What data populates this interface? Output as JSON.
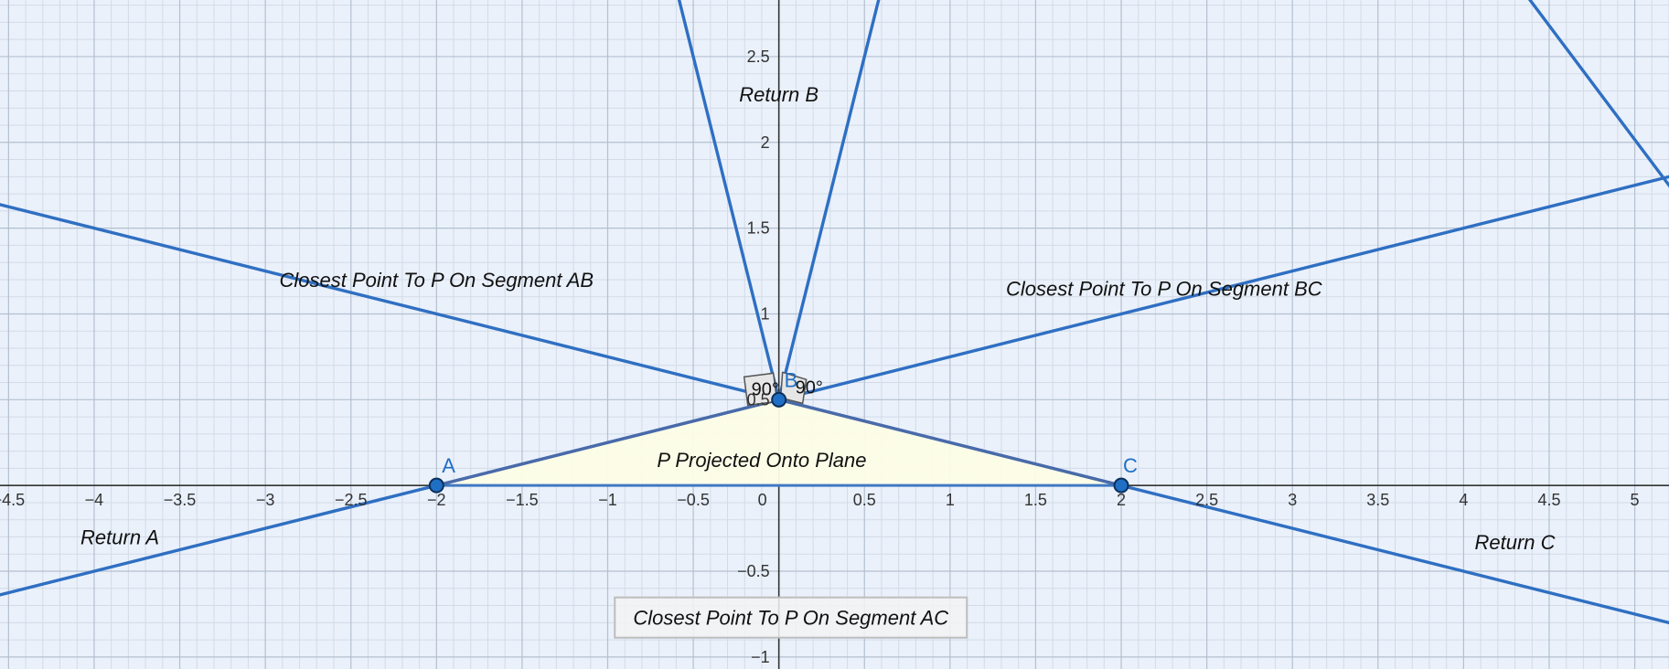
{
  "chart_data": {
    "type": "scatter",
    "title": "",
    "xlabel": "",
    "ylabel": "",
    "xlim": [
      -4.55,
      5.2
    ],
    "ylim": [
      -1.07,
      2.83
    ],
    "grid": true,
    "x_ticks": [
      "-4.5",
      "-4",
      "-3.5",
      "-3",
      "-2.5",
      "-2",
      "-1.5",
      "-1",
      "-0.5",
      "0",
      "0.5",
      "1",
      "1.5",
      "2",
      "2.5",
      "3",
      "3.5",
      "4",
      "4.5",
      "5"
    ],
    "y_ticks": [
      "-1",
      "-0.5",
      "0.5",
      "1",
      "1.5",
      "2",
      "2.5"
    ],
    "points": [
      {
        "label": "A",
        "x": -2,
        "y": 0
      },
      {
        "label": "B",
        "x": 0,
        "y": 0.5
      },
      {
        "label": "C",
        "x": 2,
        "y": 0
      }
    ],
    "triangle": [
      "A",
      "B",
      "C"
    ],
    "lines": [
      {
        "through": [
          -2,
          0
        ],
        "slope": 0.25
      },
      {
        "through": [
          2,
          0
        ],
        "slope": -0.25
      },
      {
        "through": [
          0,
          0.5
        ],
        "slope": 4
      },
      {
        "through": [
          0,
          0.5
        ],
        "slope": -4
      },
      {
        "through": [
          5.2,
          1.75
        ],
        "slope": -1.33
      }
    ],
    "angle_labels": [
      "90°",
      "90°"
    ],
    "region_labels": [
      {
        "text": "Return B",
        "x": 0,
        "y": 2.28
      },
      {
        "text": "Closest Point To P On Segment AB",
        "x": -2.0,
        "y": 1.2
      },
      {
        "text": "Closest Point To P On Segment BC",
        "x": 2.25,
        "y": 1.15
      },
      {
        "text": "P Projected Onto Plane",
        "x": -0.1,
        "y": 0.15
      },
      {
        "text": "Return A",
        "x": -3.85,
        "y": -0.3
      },
      {
        "text": "Return C",
        "x": 4.3,
        "y": -0.33
      },
      {
        "text": "Closest Point To P On Segment AC",
        "x": 0.07,
        "y": -0.77,
        "boxed": true
      }
    ]
  }
}
